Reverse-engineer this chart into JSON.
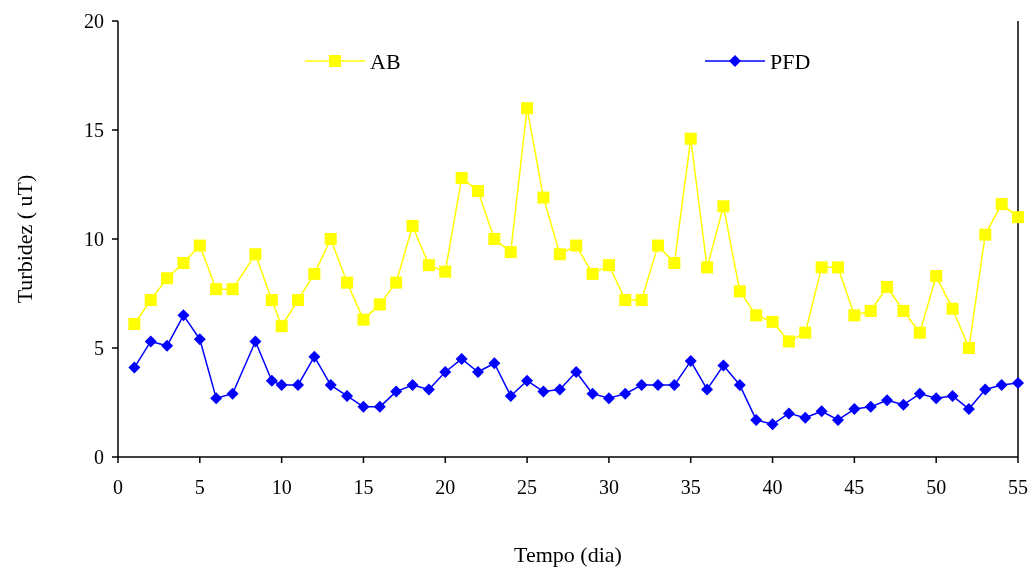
{
  "chart_data": {
    "type": "line",
    "xlabel": "Tempo (dia)",
    "ylabel": "Turbidez ( uT)",
    "x": [
      1,
      2,
      3,
      4,
      5,
      6,
      7,
      8.4,
      9.4,
      10,
      11,
      12,
      13,
      14,
      15,
      16,
      17,
      18,
      19,
      20,
      21,
      22,
      23,
      24,
      25,
      26,
      27,
      28,
      29,
      30,
      31,
      32,
      33,
      34,
      35,
      36,
      37,
      38,
      39,
      40,
      41,
      42,
      43,
      44,
      45,
      46,
      47,
      48,
      49,
      50,
      51,
      52,
      53,
      54,
      55
    ],
    "series": [
      {
        "name": "AB",
        "color": "#ffff00",
        "marker": "square",
        "values": [
          6.1,
          7.2,
          8.2,
          8.9,
          9.7,
          7.7,
          7.7,
          9.3,
          7.2,
          6.0,
          7.2,
          8.4,
          10.0,
          8.0,
          6.3,
          7.0,
          8.0,
          10.6,
          8.8,
          8.5,
          12.8,
          12.2,
          10.0,
          9.4,
          16.0,
          11.9,
          9.3,
          9.7,
          8.4,
          8.8,
          7.2,
          7.2,
          9.7,
          8.9,
          14.6,
          8.7,
          11.5,
          7.6,
          6.5,
          6.2,
          5.3,
          5.7,
          8.7,
          8.7,
          6.5,
          6.7,
          7.8,
          6.7,
          5.7,
          8.3,
          6.8,
          5.0,
          10.2,
          11.6,
          11.0
        ]
      },
      {
        "name": "PFD",
        "color": "#0000ff",
        "marker": "diamond",
        "values": [
          4.1,
          5.3,
          5.1,
          6.5,
          5.4,
          2.7,
          2.9,
          5.3,
          3.5,
          3.3,
          3.3,
          4.6,
          3.3,
          2.8,
          2.3,
          2.3,
          3.0,
          3.3,
          3.1,
          3.9,
          4.5,
          3.9,
          4.3,
          2.8,
          3.5,
          3.0,
          3.1,
          3.9,
          2.9,
          2.7,
          2.9,
          3.3,
          3.3,
          3.3,
          4.4,
          3.1,
          4.2,
          3.3,
          1.7,
          1.5,
          2.0,
          1.8,
          2.1,
          1.7,
          2.2,
          2.3,
          2.6,
          2.4,
          2.9,
          2.7,
          2.8,
          2.2,
          3.1,
          3.3,
          3.4
        ]
      }
    ],
    "xlim": [
      0,
      55
    ],
    "xticks": [
      0,
      5,
      10,
      15,
      20,
      25,
      30,
      35,
      40,
      45,
      50,
      55
    ],
    "ylim": [
      0,
      20
    ],
    "yticks": [
      0,
      5,
      10,
      15,
      20
    ],
    "legend": "top",
    "grid": false
  }
}
